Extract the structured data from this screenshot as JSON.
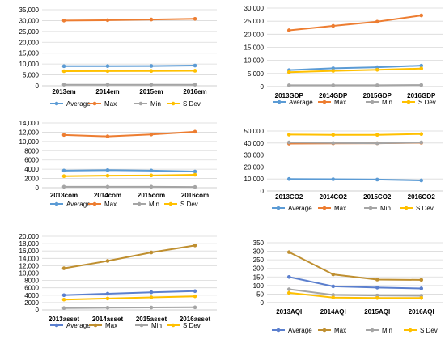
{
  "colors": {
    "grid": "#d9d9d9",
    "axis": "#bfbfbf",
    "text": "#000000"
  },
  "chart_data": [
    {
      "type": "line",
      "categories": [
        "2013em",
        "2014em",
        "2015em",
        "2016em"
      ],
      "ylim": [
        0,
        35000
      ],
      "yticks": [
        "0",
        "5,000",
        "10,000",
        "15,000",
        "20,000",
        "25,000",
        "30,000",
        "35,000"
      ],
      "grid": true,
      "legend_position": "bottom",
      "series": [
        {
          "name": "Average",
          "color": "#5b9bd5",
          "values": [
            9000,
            9050,
            9100,
            9300
          ]
        },
        {
          "name": "Max",
          "color": "#ed7d31",
          "values": [
            30000,
            30200,
            30500,
            30800
          ]
        },
        {
          "name": "Min",
          "color": "#a5a5a5",
          "values": [
            500,
            500,
            500,
            500
          ]
        },
        {
          "name": "S Dev",
          "color": "#ffc000",
          "values": [
            6700,
            6750,
            6800,
            6900
          ]
        }
      ]
    },
    {
      "type": "line",
      "categories": [
        "2013GDP",
        "2014GDP",
        "2015GDP",
        "2016GDP"
      ],
      "ylim": [
        0,
        30000
      ],
      "yticks": [
        "0",
        "5,000",
        "10,000",
        "15,000",
        "20,000",
        "25,000",
        "30,000"
      ],
      "grid": true,
      "legend_position": "bottom",
      "series": [
        {
          "name": "Average",
          "color": "#5b9bd5",
          "values": [
            6300,
            7000,
            7400,
            8000
          ]
        },
        {
          "name": "Max",
          "color": "#ed7d31",
          "values": [
            21500,
            23200,
            24800,
            27200
          ]
        },
        {
          "name": "Min",
          "color": "#a5a5a5",
          "values": [
            500,
            500,
            500,
            600
          ]
        },
        {
          "name": "S Dev",
          "color": "#ffc000",
          "values": [
            5500,
            6000,
            6400,
            6900
          ]
        }
      ]
    },
    {
      "type": "line",
      "categories": [
        "2013com",
        "2014com",
        "2015com",
        "2016com"
      ],
      "ylim": [
        0,
        14000
      ],
      "yticks": [
        "0",
        "2000",
        "4000",
        "6000",
        "8000",
        "10,000",
        "12,000",
        "14,000"
      ],
      "grid": true,
      "legend_position": "bottom",
      "series": [
        {
          "name": "Average",
          "color": "#5b9bd5",
          "values": [
            3700,
            3800,
            3700,
            3500
          ]
        },
        {
          "name": "Max",
          "color": "#ed7d31",
          "values": [
            11400,
            11100,
            11500,
            12100
          ]
        },
        {
          "name": "Min",
          "color": "#a5a5a5",
          "values": [
            200,
            200,
            200,
            150
          ]
        },
        {
          "name": "S Dev",
          "color": "#ffc000",
          "values": [
            2500,
            2600,
            2650,
            2800
          ]
        }
      ]
    },
    {
      "type": "line",
      "categories": [
        "2013CO2",
        "2014CO2",
        "2015CO2",
        "2016CO2"
      ],
      "ylim": [
        0,
        50000
      ],
      "yticks": [
        "0",
        "10,000",
        "20,000",
        "30,000",
        "40,000",
        "50,000"
      ],
      "grid": true,
      "legend_position": "bottom",
      "series": [
        {
          "name": "Average",
          "color": "#5b9bd5",
          "values": [
            10000,
            9800,
            9500,
            8800
          ]
        },
        {
          "name": "Max",
          "color": "#ed7d31",
          "values": [
            39500,
            39700,
            39800,
            40200
          ]
        },
        {
          "name": "Min",
          "color": "#a5a5a5",
          "values": [
            40500,
            40000,
            39800,
            40500
          ]
        },
        {
          "name": "S Dev",
          "color": "#ffc000",
          "values": [
            47000,
            46800,
            46800,
            47500
          ]
        }
      ]
    },
    {
      "type": "line",
      "categories": [
        "2013asset",
        "2014asset",
        "2015asset",
        "2016asset"
      ],
      "ylim": [
        0,
        20000
      ],
      "yticks": [
        "0",
        "2000",
        "4000",
        "6000",
        "8000",
        "10,000",
        "12,000",
        "14,000",
        "16,000",
        "18,000",
        "20,000"
      ],
      "grid": true,
      "legend_position": "bottom",
      "series": [
        {
          "name": "Average",
          "color": "#5b7fce",
          "values": [
            4000,
            4400,
            4800,
            5100
          ]
        },
        {
          "name": "Max",
          "color": "#bf8f30",
          "values": [
            11300,
            13300,
            15600,
            17500
          ]
        },
        {
          "name": "Min",
          "color": "#a5a5a5",
          "values": [
            500,
            600,
            650,
            700
          ]
        },
        {
          "name": "S Dev",
          "color": "#ffc000",
          "values": [
            2800,
            3100,
            3400,
            3700
          ]
        }
      ]
    },
    {
      "type": "line",
      "categories": [
        "2013AQI",
        "2014AQI",
        "2015AQI",
        "2016AQI"
      ],
      "ylim": [
        0,
        350
      ],
      "yticks": [
        "0",
        "50",
        "100",
        "150",
        "200",
        "250",
        "300",
        "350"
      ],
      "grid": true,
      "legend_position": "bottom",
      "series": [
        {
          "name": "Average",
          "color": "#5b7fce",
          "values": [
            150,
            95,
            88,
            83
          ]
        },
        {
          "name": "Max",
          "color": "#bf8f30",
          "values": [
            295,
            165,
            135,
            133
          ]
        },
        {
          "name": "Min",
          "color": "#a5a5a5",
          "values": [
            78,
            45,
            42,
            40
          ]
        },
        {
          "name": "S Dev",
          "color": "#ffc000",
          "values": [
            57,
            30,
            27,
            27
          ]
        }
      ]
    }
  ]
}
